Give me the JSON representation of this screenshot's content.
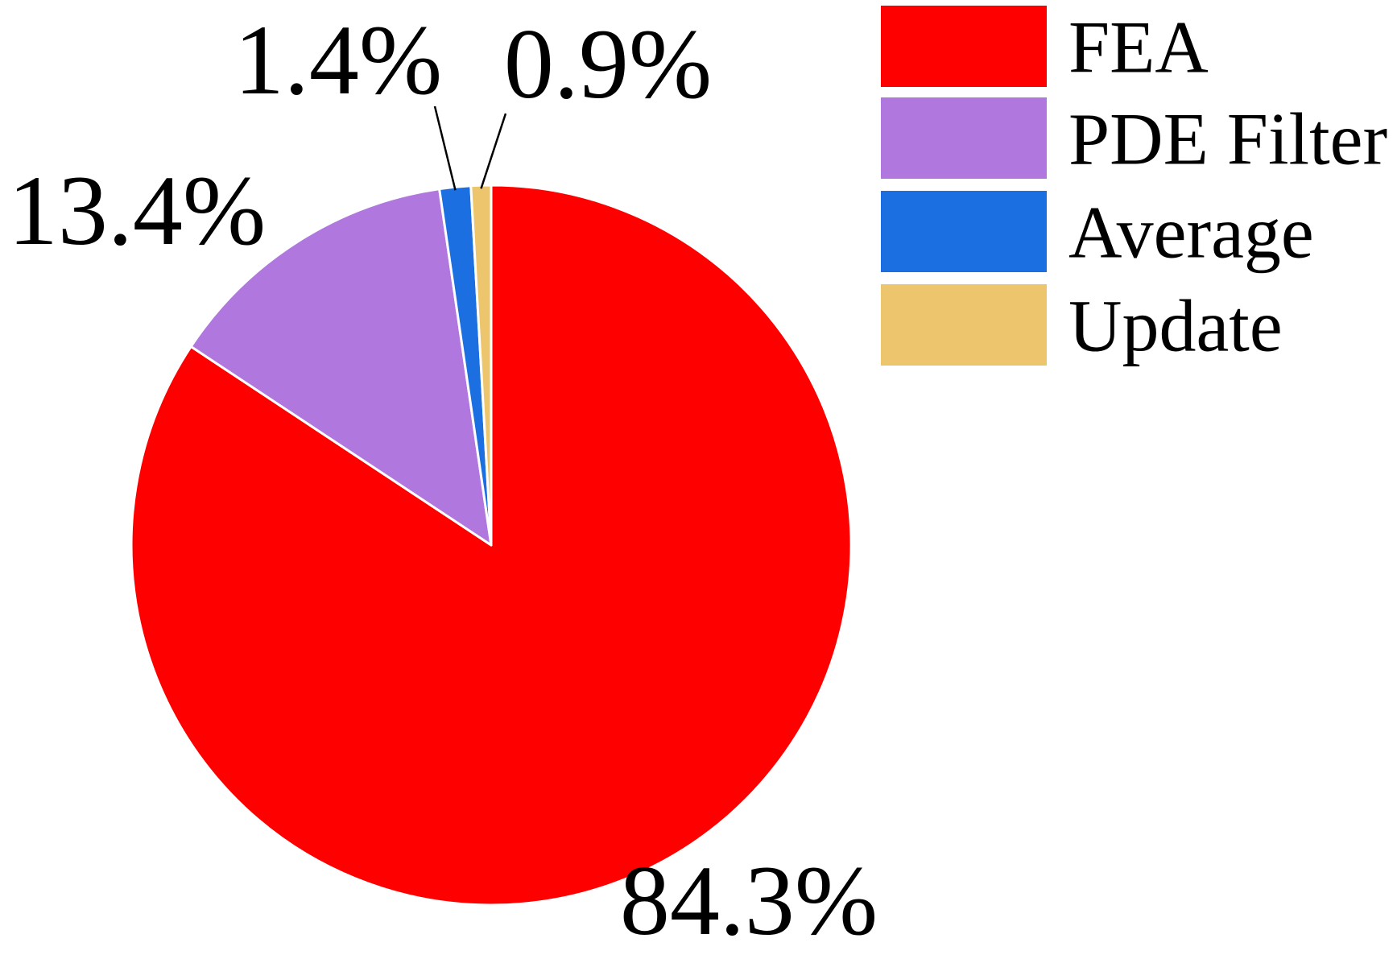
{
  "chart_data": {
    "type": "pie",
    "slices": [
      {
        "label": "FEA",
        "value": 84.3,
        "value_label": "84.3%",
        "color": "#ff0000"
      },
      {
        "label": "PDE Filter",
        "value": 13.4,
        "value_label": "13.4%",
        "color": "#b077de"
      },
      {
        "label": "Average",
        "value": 1.4,
        "value_label": "1.4%",
        "color": "#1b6fe0"
      },
      {
        "label": "Update",
        "value": 0.9,
        "value_label": "0.9%",
        "color": "#ecc56d"
      }
    ],
    "start_angle": "12 o'clock",
    "direction": "clockwise",
    "legend_position": "top-right"
  }
}
